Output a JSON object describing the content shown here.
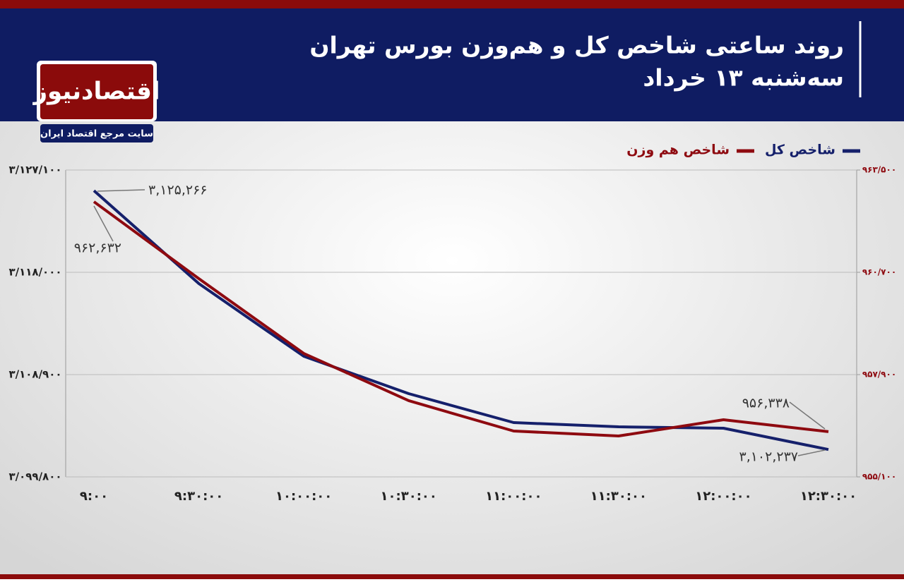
{
  "chart_data": {
    "type": "line",
    "title": "روند ساعتی شاخص کل و هم‌وزن بورس تهران",
    "subtitle": "سه‌شنبه ۱۳ خرداد",
    "logo": "اقتصادنیوز",
    "tagline": "سایت مرجع اقتصاد ایران",
    "categories": [
      "۹:۰۰",
      "۹:۳۰:۰۰",
      "۱۰:۰۰:۰۰",
      "۱۰:۳۰:۰۰",
      "۱۱:۰۰:۰۰",
      "۱۱:۳۰:۰۰",
      "۱۲:۰۰:۰۰",
      "۱۲:۳۰:۰۰"
    ],
    "series": [
      {
        "name": "شاخص کل",
        "color": "#15206b",
        "values": [
          3125266,
          3116996,
          3110531,
          3107205,
          3104632,
          3104255,
          3104130,
          3102237
        ],
        "value_labels": [
          "۳,۱۲۵,۲۶۶",
          null,
          null,
          null,
          null,
          null,
          null,
          "۳,۱۰۲,۲۳۷"
        ]
      },
      {
        "name": "شاخص هم وزن",
        "color": "#8e0a10",
        "axis": "y2",
        "values": [
          962632,
          960526,
          958479,
          957186,
          956355,
          956220,
          956664,
          956338
        ],
        "value_labels": [
          "۹۶۲,۶۳۲",
          null,
          null,
          null,
          null,
          null,
          null,
          "۹۵۶,۳۳۸"
        ]
      }
    ],
    "ylim": [
      3099800,
      3127100
    ],
    "yticks": [
      {
        "value": 3099800,
        "label": "۳/۰۹۹/۸۰۰"
      },
      {
        "value": 3108900,
        "label": "۳/۱۰۸/۹۰۰"
      },
      {
        "value": 3118000,
        "label": "۳/۱۱۸/۰۰۰"
      },
      {
        "value": 3127100,
        "label": "۳/۱۲۷/۱۰۰"
      }
    ],
    "y2lim": [
      955100,
      963500
    ],
    "y2ticks": [
      {
        "value": 955100,
        "label": "۹۵۵/۱۰۰"
      },
      {
        "value": 957900,
        "label": "۹۵۷/۹۰۰"
      },
      {
        "value": 960700,
        "label": "۹۶۰/۷۰۰"
      },
      {
        "value": 963500,
        "label": "۹۶۳/۵۰۰"
      }
    ],
    "grid": true,
    "legend": "top-right"
  }
}
